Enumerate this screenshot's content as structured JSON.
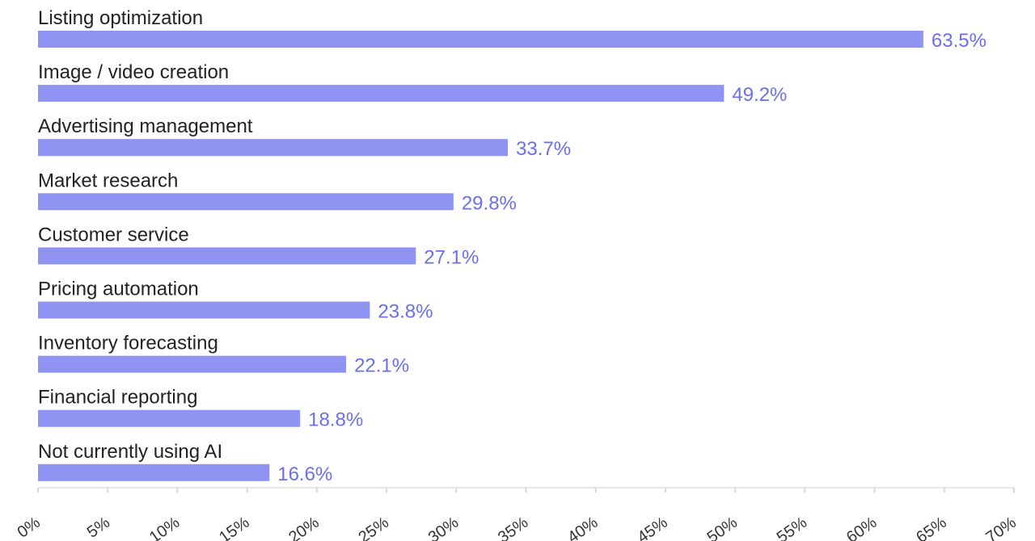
{
  "chart_data": {
    "type": "bar",
    "orientation": "horizontal",
    "categories": [
      "Listing optimization",
      "Image / video creation",
      "Advertising management",
      "Market research",
      "Customer service",
      "Pricing automation",
      "Inventory forecasting",
      "Financial reporting",
      "Not currently using AI"
    ],
    "values": [
      63.5,
      49.2,
      33.7,
      29.8,
      27.1,
      23.8,
      22.1,
      18.8,
      16.6
    ],
    "value_labels": [
      "63.5%",
      "49.2%",
      "33.7%",
      "29.8%",
      "27.1%",
      "23.8%",
      "22.1%",
      "18.8%",
      "16.6%"
    ],
    "xlim": [
      0,
      70
    ],
    "x_ticks": [
      0,
      5,
      10,
      15,
      20,
      25,
      30,
      35,
      40,
      45,
      50,
      55,
      60,
      65,
      70
    ],
    "x_tick_labels": [
      "0%",
      "5%",
      "10%",
      "15%",
      "20%",
      "25%",
      "30%",
      "35%",
      "40%",
      "45%",
      "50%",
      "55%",
      "60%",
      "65%",
      "70%"
    ],
    "grid": false,
    "legend": "none",
    "colors": {
      "bar": "#8f94f2",
      "value_label": "#6b6fe8",
      "category_label": "#222222",
      "axis": "#e6e6e6"
    }
  }
}
